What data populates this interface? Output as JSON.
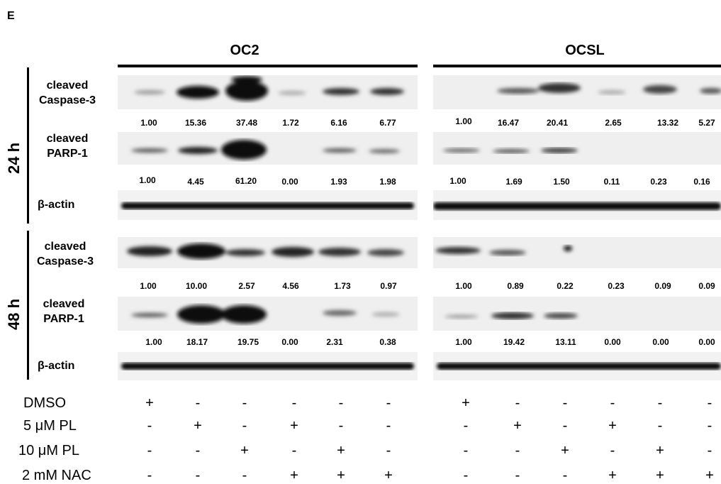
{
  "panel_label": "E",
  "cell_lines": [
    "OC2",
    "OCSL"
  ],
  "time_points": [
    "24 h",
    "48 h"
  ],
  "row_labels": {
    "cc3": [
      "cleaved",
      "Caspase-3"
    ],
    "parp": [
      "cleaved",
      "PARP-1"
    ],
    "actin": "β-actin"
  },
  "quantification": {
    "h24": {
      "OC2": {
        "cleaved_caspase3": [
          "1.00",
          "15.36",
          "37.48",
          "1.72",
          "6.16",
          "6.77"
        ],
        "cleaved_parp1": [
          "1.00",
          "4.45",
          "61.20",
          "0.00",
          "1.93",
          "1.98"
        ]
      },
      "OCSL": {
        "cleaved_caspase3": [
          "1.00",
          "16.47",
          "20.41",
          "2.65",
          "13.32",
          "5.27"
        ],
        "cleaved_parp1": [
          "1.00",
          "1.69",
          "1.50",
          "0.11",
          "0.23",
          "0.16"
        ]
      }
    },
    "h48": {
      "OC2": {
        "cleaved_caspase3": [
          "1.00",
          "10.00",
          "2.57",
          "4.56",
          "1.73",
          "0.97"
        ],
        "cleaved_parp1": [
          "1.00",
          "18.17",
          "19.75",
          "0.00",
          "2.31",
          "0.38"
        ]
      },
      "OCSL": {
        "cleaved_caspase3": [
          "1.00",
          "0.89",
          "0.22",
          "0.23",
          "0.09",
          "0.09"
        ],
        "cleaved_parp1": [
          "1.00",
          "19.42",
          "13.11",
          "0.00",
          "0.00",
          "0.00"
        ]
      }
    }
  },
  "treatments": [
    {
      "label": "DMSO",
      "signs": [
        "+",
        "-",
        "-",
        "-",
        "-",
        "-"
      ]
    },
    {
      "label": "5 μM PL",
      "signs": [
        "-",
        "+",
        "-",
        "+",
        "-",
        "-"
      ]
    },
    {
      "label": "10 μM PL",
      "signs": [
        "-",
        "-",
        "+",
        "-",
        "+",
        "-"
      ]
    },
    {
      "label": "2 mM NAC",
      "signs": [
        "-",
        "-",
        "-",
        "+",
        "+",
        "+"
      ]
    }
  ]
}
